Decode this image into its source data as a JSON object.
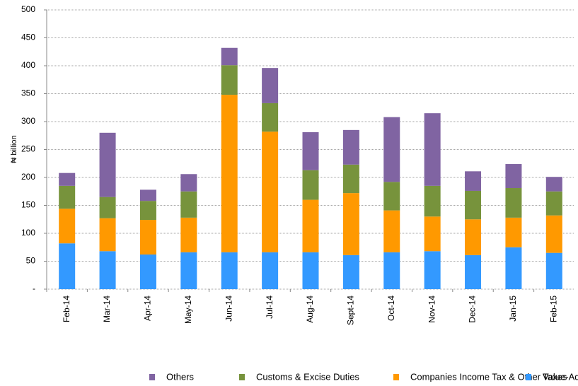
{
  "chart_data": {
    "type": "stacked_bar",
    "y_label": "₦ billion",
    "categories": [
      "Feb-14",
      "Mar-14",
      "Apr-14",
      "May-14",
      "Jun-14",
      "Jul-14",
      "Aug-14",
      "Sept-14",
      "Oct-14",
      "Nov-14",
      "Dec-14",
      "Jan-15",
      "Feb-15"
    ],
    "series": [
      {
        "name": "Value-Added Tax (VAT)",
        "color": "#3399ff",
        "values": [
          82,
          68,
          62,
          66,
          66,
          66,
          66,
          61,
          66,
          68,
          61,
          75,
          65
        ]
      },
      {
        "name": "Companies Income Tax & Other Taxes",
        "color": "#ff9900",
        "values": [
          62,
          59,
          62,
          62,
          282,
          216,
          94,
          111,
          75,
          62,
          64,
          53,
          67
        ]
      },
      {
        "name": "Customs & Excise Duties",
        "color": "#77933c",
        "values": [
          41,
          38,
          34,
          47,
          53,
          51,
          53,
          51,
          51,
          55,
          51,
          53,
          43
        ]
      },
      {
        "name": "Others",
        "color": "#8064a2",
        "values": [
          23,
          115,
          20,
          31,
          31,
          63,
          68,
          62,
          116,
          130,
          35,
          43,
          26
        ]
      }
    ],
    "ylim": [
      0,
      500
    ],
    "yticks": [
      {
        "value": 0,
        "label": "-"
      },
      50,
      100,
      150,
      200,
      250,
      300,
      350,
      400,
      450,
      500
    ],
    "grid": true,
    "legend": "bottom"
  }
}
